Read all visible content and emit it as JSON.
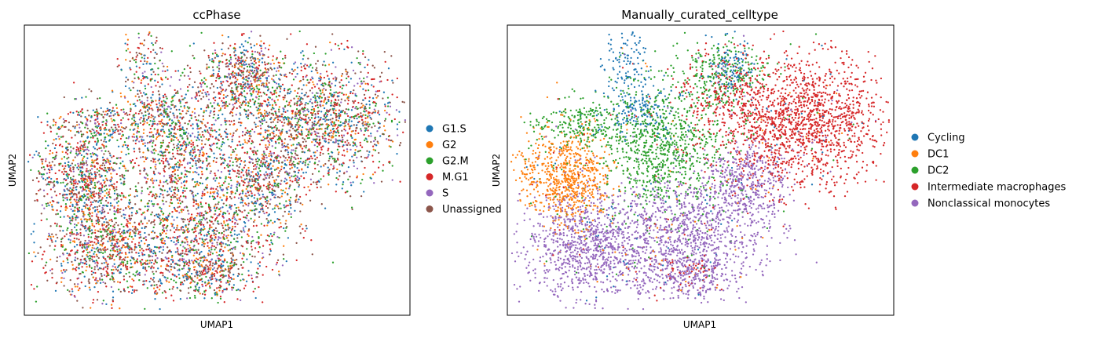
{
  "chart_data": [
    {
      "type": "scatter",
      "title": "ccPhase",
      "xlabel": "UMAP1",
      "ylabel": "UMAP2",
      "xticks": "none",
      "yticks": "none",
      "grid": false,
      "legend_position": "right",
      "legend": [
        {
          "name": "G1.S",
          "color": "#1f77b4"
        },
        {
          "name": "G2",
          "color": "#ff7f0e"
        },
        {
          "name": "G2.M",
          "color": "#2ca02c"
        },
        {
          "name": "M.G1",
          "color": "#d62728"
        },
        {
          "name": "S",
          "color": "#9467bd"
        },
        {
          "name": "Unassigned",
          "color": "#8c564b"
        }
      ]
    },
    {
      "type": "scatter",
      "title": "Manually_curated_celltype",
      "xlabel": "UMAP1",
      "ylabel": "UMAP2",
      "xticks": "none",
      "yticks": "none",
      "grid": false,
      "legend_position": "right",
      "legend": [
        {
          "name": "Cycling",
          "color": "#1f77b4"
        },
        {
          "name": "DC1",
          "color": "#ff7f0e"
        },
        {
          "name": "DC2",
          "color": "#2ca02c"
        },
        {
          "name": "Intermediate macrophages",
          "color": "#d62728"
        },
        {
          "name": "Nonclassical monocytes",
          "color": "#9467bd"
        }
      ]
    }
  ]
}
